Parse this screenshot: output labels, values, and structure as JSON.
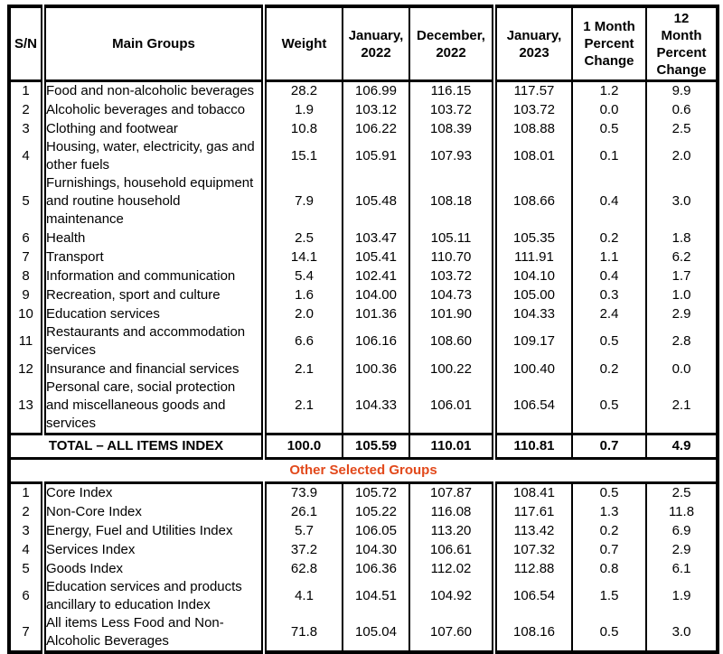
{
  "colors": {
    "border": "#000000",
    "section_title_orange": "#E2491B"
  },
  "table": {
    "headers": {
      "sn": "S/N",
      "main_groups": "Main Groups",
      "weight": "Weight",
      "jan_2022": "January,\n2022",
      "dec_2022": "December,\n2022",
      "jan_2023": "January,\n2023",
      "one_month": "1 Month\nPercent\nChange",
      "twelve_month": "12\nMonth\nPercent\nChange"
    },
    "main_rows": [
      {
        "sn": "1",
        "name": "Food and non-alcoholic beverages",
        "weight": "28.2",
        "jan_2022": "106.99",
        "dec_2022": "116.15",
        "jan_2023": "117.57",
        "one_month": "1.2",
        "twelve_month": "9.9"
      },
      {
        "sn": "2",
        "name": "Alcoholic beverages and tobacco",
        "weight": "1.9",
        "jan_2022": "103.12",
        "dec_2022": "103.72",
        "jan_2023": "103.72",
        "one_month": "0.0",
        "twelve_month": "0.6"
      },
      {
        "sn": "3",
        "name": "Clothing and footwear",
        "weight": "10.8",
        "jan_2022": "106.22",
        "dec_2022": "108.39",
        "jan_2023": "108.88",
        "one_month": "0.5",
        "twelve_month": "2.5"
      },
      {
        "sn": "4",
        "name": "Housing, water, electricity, gas and\nother fuels",
        "weight": "15.1",
        "jan_2022": "105.91",
        "dec_2022": "107.93",
        "jan_2023": "108.01",
        "one_month": "0.1",
        "twelve_month": "2.0"
      },
      {
        "sn": "5",
        "name": "Furnishings, household equipment\nand routine household\nmaintenance",
        "weight": "7.9",
        "jan_2022": "105.48",
        "dec_2022": "108.18",
        "jan_2023": "108.66",
        "one_month": "0.4",
        "twelve_month": "3.0"
      },
      {
        "sn": "6",
        "name": "Health",
        "weight": "2.5",
        "jan_2022": "103.47",
        "dec_2022": "105.11",
        "jan_2023": "105.35",
        "one_month": "0.2",
        "twelve_month": "1.8"
      },
      {
        "sn": "7",
        "name": "Transport",
        "weight": "14.1",
        "jan_2022": "105.41",
        "dec_2022": "110.70",
        "jan_2023": "111.91",
        "one_month": "1.1",
        "twelve_month": "6.2"
      },
      {
        "sn": "8",
        "name": "Information and communication",
        "weight": "5.4",
        "jan_2022": "102.41",
        "dec_2022": "103.72",
        "jan_2023": "104.10",
        "one_month": "0.4",
        "twelve_month": "1.7"
      },
      {
        "sn": "9",
        "name": "Recreation, sport and culture",
        "weight": "1.6",
        "jan_2022": "104.00",
        "dec_2022": "104.73",
        "jan_2023": "105.00",
        "one_month": "0.3",
        "twelve_month": "1.0"
      },
      {
        "sn": "10",
        "name": "Education services",
        "weight": "2.0",
        "jan_2022": "101.36",
        "dec_2022": "101.90",
        "jan_2023": "104.33",
        "one_month": "2.4",
        "twelve_month": "2.9"
      },
      {
        "sn": "11",
        "name": "Restaurants and accommodation\nservices",
        "weight": "6.6",
        "jan_2022": "106.16",
        "dec_2022": "108.60",
        "jan_2023": "109.17",
        "one_month": "0.5",
        "twelve_month": "2.8"
      },
      {
        "sn": "12",
        "name": "Insurance and financial services",
        "weight": "2.1",
        "jan_2022": "100.36",
        "dec_2022": "100.22",
        "jan_2023": "100.40",
        "one_month": "0.2",
        "twelve_month": "0.0"
      },
      {
        "sn": "13",
        "name": "Personal care, social protection\nand miscellaneous goods and\nservices",
        "weight": "2.1",
        "jan_2022": "104.33",
        "dec_2022": "106.01",
        "jan_2023": "106.54",
        "one_month": "0.5",
        "twelve_month": "2.1"
      }
    ],
    "total_row": {
      "label": "TOTAL – ALL ITEMS INDEX",
      "weight": "100.0",
      "jan_2022": "105.59",
      "dec_2022": "110.01",
      "jan_2023": "110.81",
      "one_month": "0.7",
      "twelve_month": "4.9"
    },
    "other_section_title": "Other Selected Groups",
    "other_rows": [
      {
        "sn": "1",
        "name": "Core Index",
        "weight": "73.9",
        "jan_2022": "105.72",
        "dec_2022": "107.87",
        "jan_2023": "108.41",
        "one_month": "0.5",
        "twelve_month": "2.5"
      },
      {
        "sn": "2",
        "name": "Non-Core Index",
        "weight": "26.1",
        "jan_2022": "105.22",
        "dec_2022": "116.08",
        "jan_2023": "117.61",
        "one_month": "1.3",
        "twelve_month": "11.8"
      },
      {
        "sn": "3",
        "name": "Energy, Fuel and Utilities Index",
        "weight": "5.7",
        "jan_2022": "106.05",
        "dec_2022": "113.20",
        "jan_2023": "113.42",
        "one_month": "0.2",
        "twelve_month": "6.9"
      },
      {
        "sn": "4",
        "name": "Services Index",
        "weight": "37.2",
        "jan_2022": "104.30",
        "dec_2022": "106.61",
        "jan_2023": "107.32",
        "one_month": "0.7",
        "twelve_month": "2.9"
      },
      {
        "sn": "5",
        "name": "Goods Index",
        "weight": "62.8",
        "jan_2022": "106.36",
        "dec_2022": "112.02",
        "jan_2023": "112.88",
        "one_month": "0.8",
        "twelve_month": "6.1"
      },
      {
        "sn": "6",
        "name": "Education services and products\nancillary to education Index",
        "weight": "4.1",
        "jan_2022": "104.51",
        "dec_2022": "104.92",
        "jan_2023": "106.54",
        "one_month": "1.5",
        "twelve_month": "1.9"
      },
      {
        "sn": "7",
        "name": "All items Less Food and Non-\nAlcoholic Beverages",
        "weight": "71.8",
        "jan_2022": "105.04",
        "dec_2022": "107.60",
        "jan_2023": "108.16",
        "one_month": "0.5",
        "twelve_month": "3.0"
      }
    ]
  }
}
